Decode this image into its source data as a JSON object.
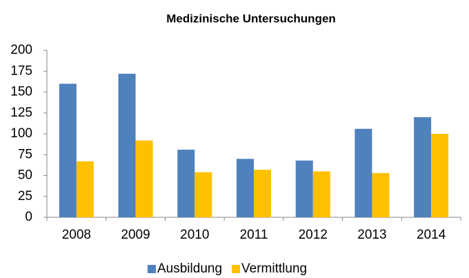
{
  "chart_data": {
    "type": "bar",
    "title": "Medizinische Untersuchungen",
    "categories": [
      "2008",
      "2009",
      "2010",
      "2011",
      "2012",
      "2013",
      "2014"
    ],
    "series": [
      {
        "name": "Ausbildung",
        "color": "#4f81bd",
        "values": [
          160,
          172,
          81,
          70,
          68,
          106,
          120
        ]
      },
      {
        "name": "Vermittlung",
        "color": "#ffc000",
        "values": [
          67,
          92,
          54,
          57,
          55,
          53,
          100
        ]
      }
    ],
    "ylim": [
      0,
      200
    ],
    "yticks": [
      0,
      25,
      50,
      75,
      100,
      125,
      150,
      175,
      200
    ],
    "grid": false,
    "legend": "bottom"
  }
}
